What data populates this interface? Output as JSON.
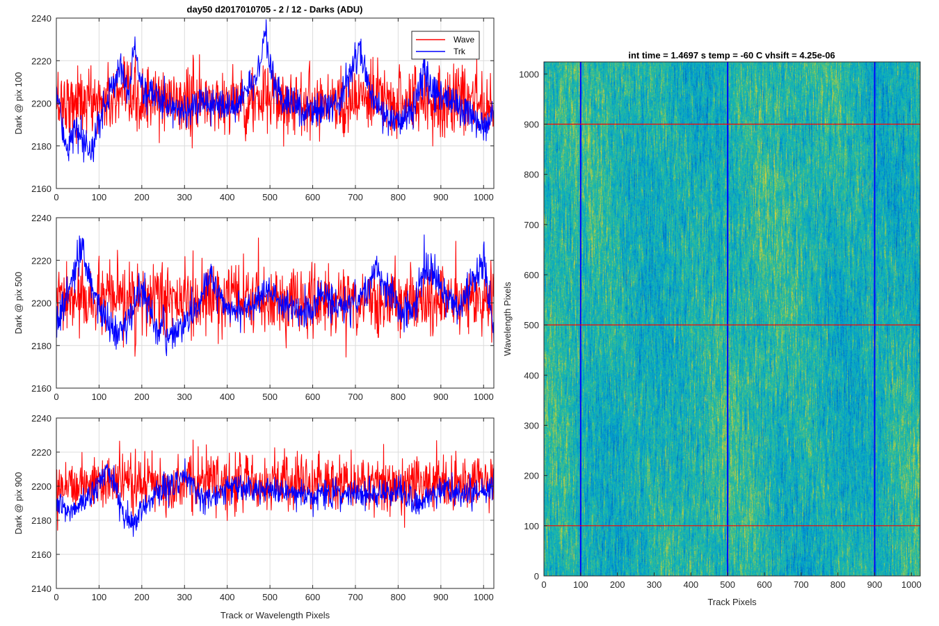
{
  "figure_title": "day50 d2017010705 - 2 / 12 - Darks (ADU)",
  "image_title": "int time = 1.4697 s   temp = -60 C   vhsift = 4.25e-06",
  "colors": {
    "wave": "#ff0000",
    "trk": "#0000ff",
    "grid": "#dcdcdc",
    "axis": "#262626"
  },
  "chart_data": [
    {
      "type": "line",
      "ylabel": "Dark @ pix 100",
      "xlabel": "",
      "xlim": [
        0,
        1024
      ],
      "ylim": [
        2160,
        2240
      ],
      "xticks": [
        0,
        100,
        200,
        300,
        400,
        500,
        600,
        700,
        800,
        900,
        1000
      ],
      "yticks": [
        2160,
        2180,
        2200,
        2220,
        2240
      ],
      "grid": true,
      "legend": {
        "position": "top-right",
        "entries": [
          "Wave",
          "Trk"
        ]
      },
      "series": [
        {
          "name": "Wave",
          "color": "#ff0000",
          "mean": 2200,
          "noise_sd": 8,
          "x": [
            0,
            1024
          ],
          "smooth_values": [
            2201,
            2201
          ]
        },
        {
          "name": "Trk",
          "color": "#0000ff",
          "noise_sd": 4,
          "x": [
            0,
            15,
            30,
            45,
            60,
            80,
            100,
            130,
            150,
            170,
            185,
            200,
            240,
            300,
            350,
            420,
            460,
            480,
            490,
            500,
            530,
            600,
            660,
            690,
            710,
            730,
            760,
            800,
            840,
            860,
            880,
            900,
            950,
            1000,
            1024
          ],
          "smooth_values": [
            2207,
            2186,
            2180,
            2188,
            2181,
            2176,
            2192,
            2207,
            2218,
            2206,
            2226,
            2207,
            2202,
            2197,
            2199,
            2199,
            2210,
            2221,
            2232,
            2215,
            2200,
            2197,
            2200,
            2216,
            2226,
            2208,
            2196,
            2190,
            2200,
            2216,
            2206,
            2204,
            2196,
            2190,
            2194
          ]
        }
      ]
    },
    {
      "type": "line",
      "ylabel": "Dark @ pix 500",
      "xlabel": "",
      "xlim": [
        0,
        1024
      ],
      "ylim": [
        2160,
        2240
      ],
      "xticks": [
        0,
        100,
        200,
        300,
        400,
        500,
        600,
        700,
        800,
        900,
        1000
      ],
      "yticks": [
        2160,
        2180,
        2200,
        2220,
        2240
      ],
      "grid": true,
      "series": [
        {
          "name": "Wave",
          "color": "#ff0000",
          "mean": 2200,
          "noise_sd": 8,
          "x": [
            0,
            1024
          ],
          "smooth_values": [
            2201,
            2201
          ]
        },
        {
          "name": "Trk",
          "color": "#0000ff",
          "noise_sd": 4,
          "x": [
            0,
            20,
            40,
            60,
            80,
            110,
            140,
            170,
            200,
            230,
            260,
            300,
            330,
            360,
            400,
            440,
            480,
            520,
            560,
            600,
            620,
            650,
            700,
            750,
            800,
            840,
            860,
            890,
            940,
            980,
            1000,
            1024
          ],
          "smooth_values": [
            2190,
            2200,
            2214,
            2224,
            2208,
            2195,
            2185,
            2192,
            2208,
            2190,
            2184,
            2190,
            2198,
            2212,
            2198,
            2196,
            2206,
            2200,
            2197,
            2196,
            2206,
            2198,
            2200,
            2214,
            2197,
            2196,
            2218,
            2212,
            2196,
            2214,
            2218,
            2186
          ]
        }
      ]
    },
    {
      "type": "line",
      "ylabel": "Dark @ pix 900",
      "xlabel": "Track or Wavelength Pixels",
      "xlim": [
        0,
        1024
      ],
      "ylim": [
        2140,
        2240
      ],
      "xticks": [
        0,
        100,
        200,
        300,
        400,
        500,
        600,
        700,
        800,
        900,
        1000
      ],
      "yticks": [
        2140,
        2160,
        2180,
        2200,
        2220,
        2240
      ],
      "grid": true,
      "series": [
        {
          "name": "Wave",
          "color": "#ff0000",
          "mean": 2202,
          "noise_sd": 8,
          "x": [
            0,
            1024
          ],
          "smooth_values": [
            2202,
            2202
          ]
        },
        {
          "name": "Trk",
          "color": "#0000ff",
          "noise_sd": 4,
          "x": [
            0,
            30,
            60,
            90,
            120,
            140,
            160,
            180,
            220,
            260,
            300,
            350,
            400,
            450,
            500,
            540,
            600,
            650,
            700,
            760,
            800,
            850,
            900,
            950,
            1000,
            1024
          ],
          "smooth_values": [
            2188,
            2185,
            2190,
            2198,
            2210,
            2198,
            2182,
            2177,
            2194,
            2200,
            2205,
            2192,
            2200,
            2197,
            2198,
            2197,
            2194,
            2196,
            2196,
            2195,
            2198,
            2190,
            2198,
            2195,
            2196,
            2200
          ]
        }
      ]
    },
    {
      "type": "heatmap",
      "title": "int time = 1.4697 s   temp = -60 C   vhsift = 4.25e-06",
      "xlabel": "Track Pixels",
      "ylabel": "Wavelength Pixels",
      "xlim": [
        0,
        1024
      ],
      "ylim": [
        0,
        1024
      ],
      "xticks": [
        0,
        100,
        200,
        300,
        400,
        500,
        600,
        700,
        800,
        900,
        1000
      ],
      "yticks": [
        0,
        100,
        200,
        300,
        400,
        500,
        600,
        700,
        800,
        900,
        1000
      ],
      "colormap": "parula",
      "marker_lines": {
        "vertical_track_pixels": [
          100,
          500,
          900
        ],
        "vertical_color": "#0000ff",
        "horizontal_wavelength_pixels": [
          100,
          500,
          900
        ],
        "horizontal_color": "#ff0000"
      }
    }
  ]
}
